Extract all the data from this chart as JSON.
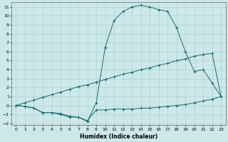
{
  "xlabel": "Humidex (Indice chaleur)",
  "background_color": "#cce8e8",
  "grid_color": "#aacccc",
  "line_color": "#1a6b6b",
  "xlim": [
    -0.5,
    23.5
  ],
  "ylim": [
    -2.2,
    11.5
  ],
  "xticks": [
    0,
    1,
    2,
    3,
    4,
    5,
    6,
    7,
    8,
    9,
    10,
    11,
    12,
    13,
    14,
    15,
    16,
    17,
    18,
    19,
    20,
    21,
    22,
    23
  ],
  "yticks": [
    -2,
    -1,
    0,
    1,
    2,
    3,
    4,
    5,
    6,
    7,
    8,
    9,
    10,
    11
  ],
  "line1_x": [
    0,
    1,
    2,
    3,
    4,
    5,
    6,
    7,
    8,
    9,
    10,
    11,
    12,
    13,
    14,
    15,
    16,
    17,
    18,
    19,
    20,
    21,
    22,
    23
  ],
  "line1_y": [
    0.0,
    -0.1,
    -0.3,
    -0.8,
    -0.8,
    -0.9,
    -1.2,
    -1.3,
    -1.7,
    -0.5,
    -0.5,
    -0.4,
    -0.4,
    -0.4,
    -0.3,
    -0.3,
    -0.2,
    -0.1,
    0.0,
    0.1,
    0.3,
    0.5,
    0.7,
    1.0
  ],
  "line2_x": [
    0,
    1,
    2,
    3,
    4,
    5,
    6,
    7,
    8,
    9,
    10,
    11,
    12,
    13,
    14,
    15,
    16,
    17,
    18,
    19,
    20,
    21,
    22,
    23
  ],
  "line2_y": [
    0.0,
    0.3,
    0.6,
    0.9,
    1.2,
    1.5,
    1.8,
    2.1,
    2.3,
    2.6,
    2.9,
    3.2,
    3.5,
    3.7,
    4.0,
    4.2,
    4.5,
    4.7,
    5.0,
    5.2,
    5.5,
    5.7,
    5.8,
    1.0
  ],
  "line3_x": [
    0,
    1,
    2,
    3,
    4,
    5,
    6,
    7,
    8,
    9,
    10,
    11,
    12,
    13,
    14,
    15,
    16,
    17,
    18,
    19,
    20,
    21,
    22,
    23
  ],
  "line3_y": [
    0.0,
    -0.1,
    -0.3,
    -0.8,
    -0.8,
    -1.0,
    -1.3,
    -1.3,
    -1.8,
    0.3,
    6.5,
    9.5,
    10.5,
    11.0,
    11.2,
    11.0,
    10.7,
    10.5,
    8.7,
    6.0,
    3.8,
    4.0,
    2.5,
    1.0
  ]
}
